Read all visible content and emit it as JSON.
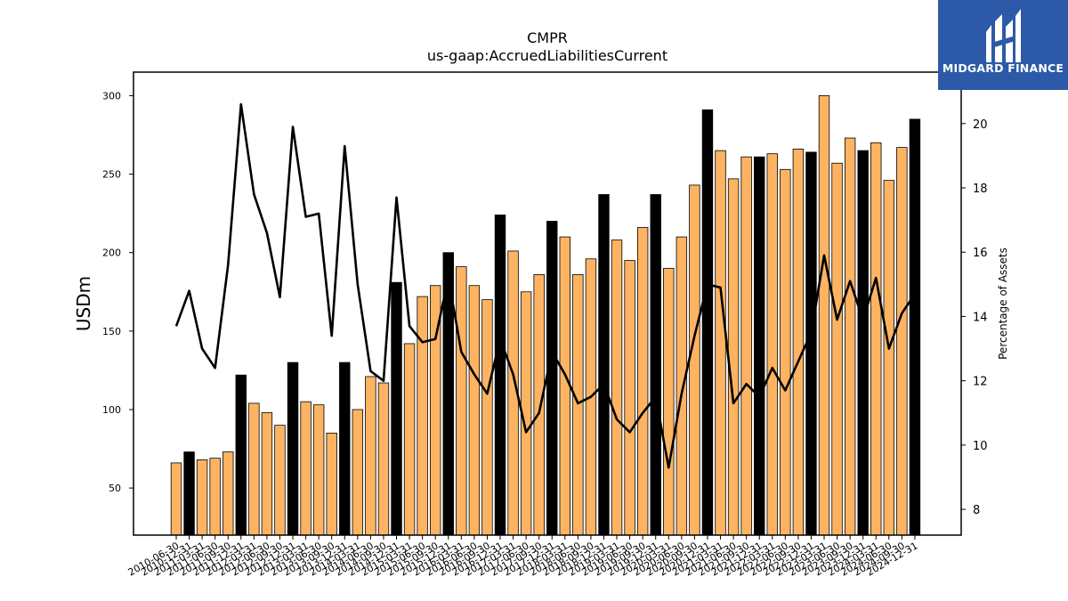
{
  "chart_data": {
    "type": "bar+line",
    "title": "CMPR",
    "subtitle": "us-gaap:AccruedLiabilitiesCurrent",
    "ylabel": "USDm",
    "y2label": "Percentage of Assets",
    "ylim": [
      20,
      315
    ],
    "y2lim": [
      7.2,
      21.6
    ],
    "yticks": [
      50,
      100,
      150,
      200,
      250,
      300
    ],
    "y2ticks": [
      8,
      10,
      12,
      14,
      16,
      18,
      20
    ],
    "bar_color_regular": "#fdb462",
    "bar_color_annual": "#000000",
    "line_color": "#000000",
    "categories": [
      "2010-06-30",
      "2010-12-31",
      "2011-03-31",
      "2011-06-30",
      "2011-09-30",
      "2011-12-31",
      "2012-03-31",
      "2012-06-30",
      "2012-09-30",
      "2012-12-31",
      "2013-03-31",
      "2013-06-30",
      "2013-09-30",
      "2013-12-31",
      "2014-03-31",
      "2014-06-30",
      "2014-09-30",
      "2014-12-31",
      "2015-03-31",
      "2015-06-30",
      "2015-09-30",
      "2015-12-31",
      "2016-03-31",
      "2016-06-30",
      "2016-09-30",
      "2016-12-31",
      "2017-03-31",
      "2017-06-30",
      "2017-09-30",
      "2017-12-31",
      "2018-03-31",
      "2018-06-30",
      "2018-09-30",
      "2018-12-31",
      "2019-03-31",
      "2019-06-30",
      "2019-09-30",
      "2019-12-31",
      "2020-03-31",
      "2020-06-30",
      "2020-09-30",
      "2020-12-31",
      "2021-03-31",
      "2021-06-30",
      "2021-09-30",
      "2021-12-31",
      "2022-03-31",
      "2022-06-30",
      "2022-09-30",
      "2022-12-31",
      "2023-03-31",
      "2023-06-30",
      "2023-09-30",
      "2023-12-31",
      "2024-03-31",
      "2024-06-30",
      "2024-09-30",
      "2024-12-31"
    ],
    "series": [
      {
        "type": "bar",
        "values": [
          66,
          73,
          68,
          69,
          73,
          122,
          104,
          98,
          90,
          130,
          105,
          103,
          85,
          130,
          100,
          121,
          117,
          181,
          142,
          172,
          179,
          200,
          191,
          179,
          170,
          224,
          201,
          175,
          186,
          220,
          210,
          186,
          196,
          237,
          208,
          195,
          216,
          237,
          190,
          210,
          243,
          291,
          265,
          247,
          261,
          261,
          263,
          253,
          266,
          264,
          300,
          257,
          273,
          265,
          270,
          246,
          267,
          285
        ],
        "annual": [
          false,
          true,
          false,
          false,
          false,
          true,
          false,
          false,
          false,
          true,
          false,
          false,
          false,
          true,
          false,
          false,
          false,
          true,
          false,
          false,
          false,
          true,
          false,
          false,
          false,
          true,
          false,
          false,
          false,
          true,
          false,
          false,
          false,
          true,
          false,
          false,
          false,
          true,
          false,
          false,
          false,
          true,
          false,
          false,
          false,
          true,
          false,
          false,
          false,
          true,
          false,
          false,
          false,
          true,
          false,
          false,
          false,
          true
        ]
      },
      {
        "type": "line",
        "axis": "right",
        "values": [
          13.7,
          14.8,
          13.0,
          12.4,
          15.6,
          20.6,
          17.8,
          16.6,
          14.6,
          19.9,
          17.1,
          17.2,
          13.4,
          19.3,
          15.0,
          12.3,
          12.0,
          17.7,
          13.7,
          13.2,
          13.3,
          15.2,
          12.9,
          12.2,
          11.6,
          13.3,
          12.2,
          10.4,
          11.0,
          12.9,
          12.2,
          11.3,
          11.5,
          11.9,
          10.8,
          10.4,
          11.0,
          11.5,
          9.3,
          11.6,
          13.4,
          15.0,
          14.9,
          11.3,
          11.9,
          11.5,
          12.4,
          11.7,
          12.6,
          13.5,
          15.9,
          13.9,
          15.1,
          13.9,
          15.2,
          13.0,
          14.1,
          14.7
        ]
      }
    ],
    "grid": false,
    "legend": "none"
  },
  "logo": {
    "text": "MIDGARD FINANCE"
  }
}
